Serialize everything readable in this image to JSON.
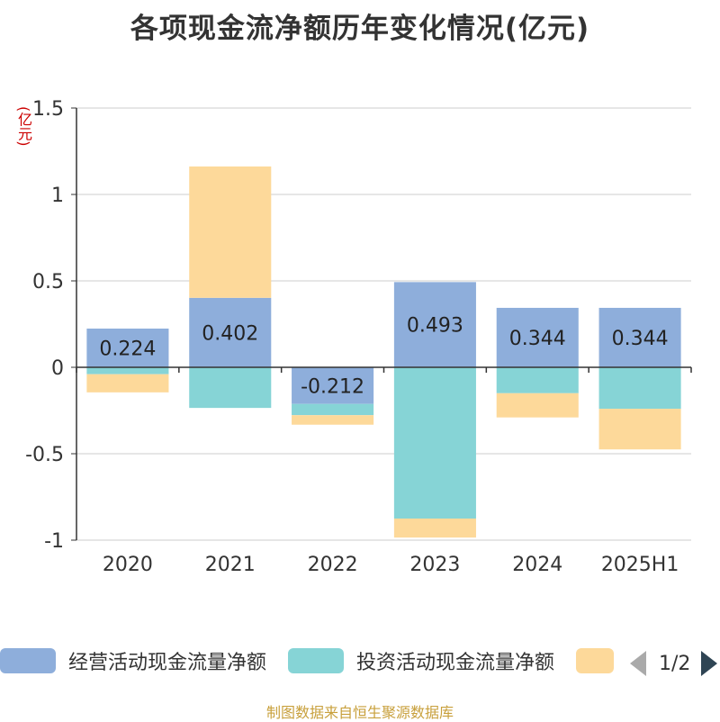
{
  "title": "各项现金流净额历年变化情况(亿元)",
  "unit_label": "(亿元)",
  "source_note": "制图数据来自恒生聚源数据库",
  "legend": {
    "items": [
      {
        "label": "经营活动现金流量净额",
        "color": "#8eaedb"
      },
      {
        "label": "投资活动现金流量净额",
        "color": "#86d4d6"
      },
      {
        "label": "",
        "color": "#fdd99a"
      }
    ],
    "page": "1/2"
  },
  "chart_data": {
    "type": "bar",
    "stacked": true,
    "categories": [
      "2020",
      "2021",
      "2022",
      "2023",
      "2024",
      "2025H1"
    ],
    "ylim": [
      -1,
      1.5
    ],
    "yticks": [
      "-1",
      "-0.5",
      "0",
      "0.5",
      "1",
      "1.5"
    ],
    "grid": true,
    "series": [
      {
        "name": "经营活动现金流量净额",
        "color": "#8eaedb",
        "values": [
          0.224,
          0.402,
          -0.212,
          0.493,
          0.344,
          0.344
        ],
        "labels": [
          "0.224",
          "0.402",
          "-0.212",
          "0.493",
          "0.344",
          "0.344"
        ]
      },
      {
        "name": "投资活动现金流量净额",
        "color": "#86d4d6",
        "values": [
          -0.04,
          -0.235,
          -0.065,
          -0.875,
          -0.15,
          -0.24
        ]
      },
      {
        "color": "#fdd99a",
        "values": [
          -0.105,
          0.76,
          -0.055,
          -0.11,
          -0.14,
          -0.235
        ]
      }
    ]
  }
}
